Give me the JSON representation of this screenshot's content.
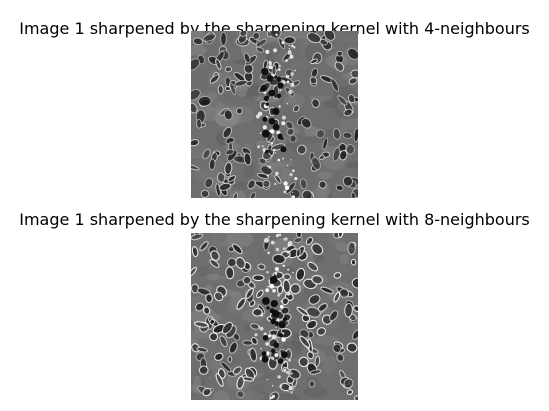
{
  "panels": [
    {
      "title": "Image 1 sharpened by the sharpening kernel with 4-neighbours",
      "image": "grayscale-cell-micrograph"
    },
    {
      "title": "Image 1 sharpened by the sharpening kernel with 8-neighbours",
      "image": "grayscale-cell-micrograph"
    }
  ],
  "colors": {
    "background": "#ffffff",
    "text": "#000000"
  }
}
